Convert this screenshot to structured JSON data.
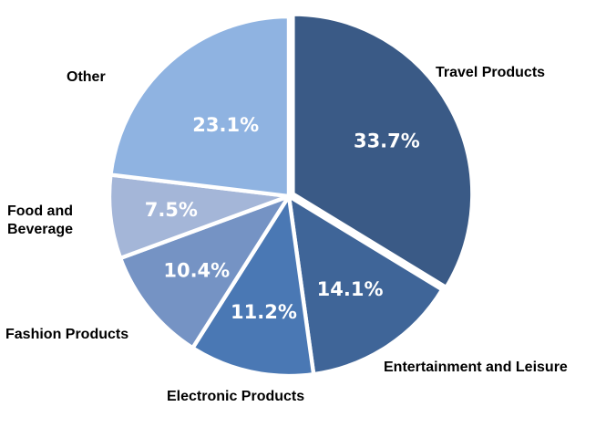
{
  "chart_data": {
    "type": "pie",
    "title": "",
    "slices": [
      {
        "label": "Travel Products",
        "value": 33.7,
        "value_label": "33.7%",
        "color": "#3a5a86",
        "exploded": true
      },
      {
        "label": "Entertainment and Leisure",
        "value": 14.1,
        "value_label": "14.1%",
        "color": "#3f6598",
        "exploded": false
      },
      {
        "label": "Electronic Products",
        "value": 11.2,
        "value_label": "11.2%",
        "color": "#4a78b4",
        "exploded": false
      },
      {
        "label": "Fashion Products",
        "value": 10.4,
        "value_label": "10.4%",
        "color": "#7593c4",
        "exploded": false
      },
      {
        "label": "Food and Beverage",
        "value": 7.5,
        "value_label": "7.5%",
        "color": "#a4b6d8",
        "exploded": false
      },
      {
        "label": "Other",
        "value": 23.1,
        "value_label": "23.1%",
        "color": "#8fb3e1",
        "exploded": false
      }
    ],
    "start_angle_deg": 0,
    "direction": "clockwise",
    "legend": "none"
  }
}
